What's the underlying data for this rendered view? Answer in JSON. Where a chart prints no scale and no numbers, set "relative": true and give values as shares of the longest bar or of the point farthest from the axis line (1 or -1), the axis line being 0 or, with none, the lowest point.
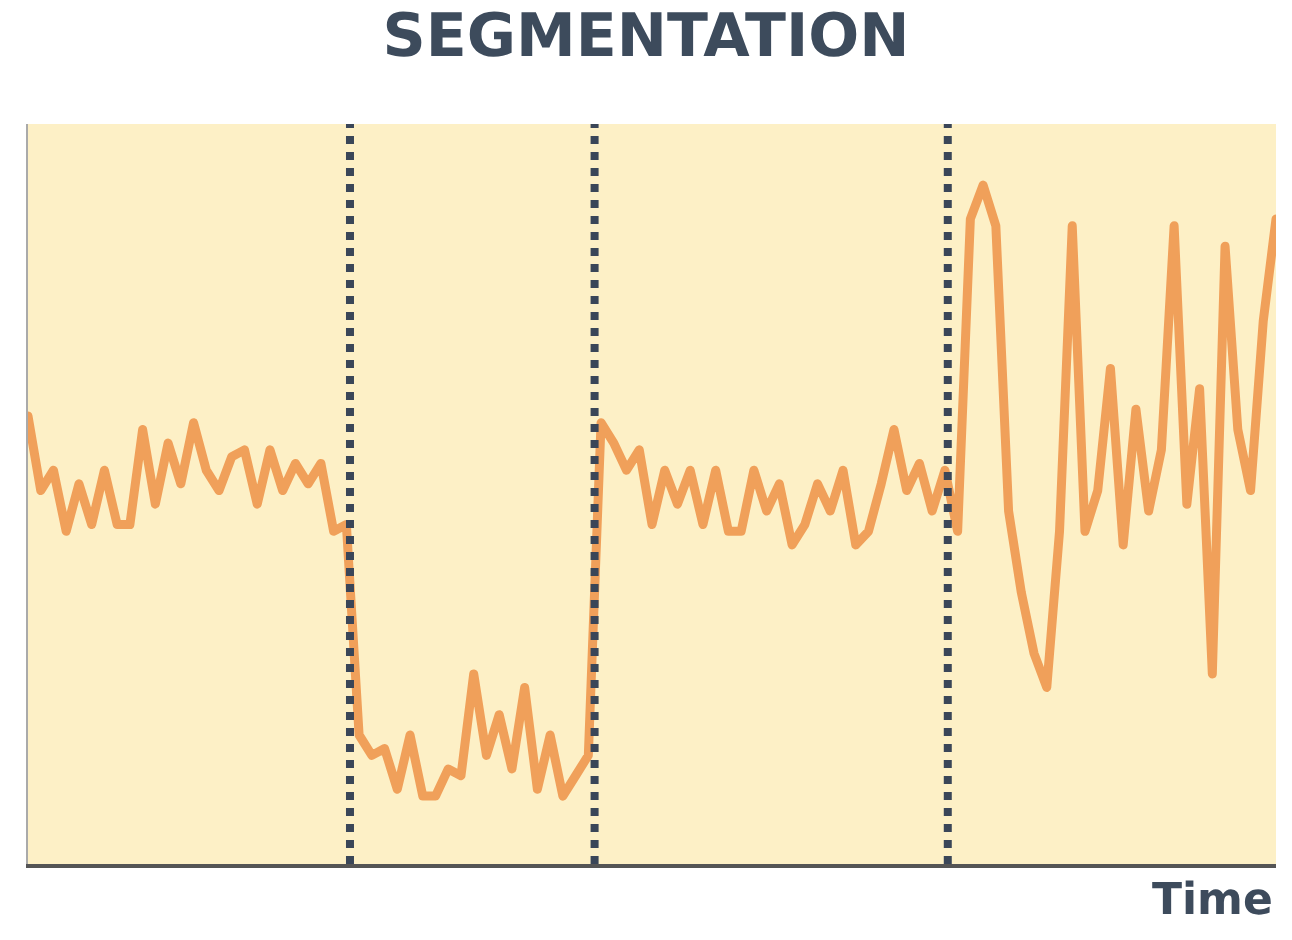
{
  "chart_data": {
    "type": "line",
    "title": "SEGMENTATION",
    "xlabel": "Time",
    "relative": true,
    "marker": "none",
    "line_style": "solid",
    "categories": [
      null,
      null,
      null,
      null,
      null,
      null,
      null,
      null,
      null,
      null,
      null,
      null,
      null,
      null,
      null,
      null,
      null,
      null,
      null,
      null,
      null,
      null,
      null,
      null,
      null,
      null,
      null,
      null,
      null,
      null,
      null,
      null,
      null,
      null,
      null,
      null,
      null,
      null,
      null,
      null,
      null,
      null,
      null,
      null,
      null,
      null,
      null,
      null,
      null,
      null,
      null,
      null,
      null,
      null,
      null,
      null,
      null,
      null,
      null,
      null,
      null,
      null,
      null,
      null,
      null,
      null,
      null,
      null,
      null,
      null,
      null,
      null,
      null,
      null,
      null,
      null,
      null,
      null,
      null,
      null,
      null,
      null,
      null,
      null,
      null,
      null,
      null,
      null,
      null,
      null,
      null,
      null,
      null,
      null,
      null,
      null,
      null,
      null,
      null
    ],
    "series": [
      {
        "color": "#f0a05a",
        "values": [
          0.66,
          0.55,
          0.58,
          0.49,
          0.56,
          0.5,
          0.58,
          0.5,
          0.5,
          0.64,
          0.53,
          0.62,
          0.56,
          0.65,
          0.58,
          0.55,
          0.6,
          0.61,
          0.53,
          0.61,
          0.55,
          0.59,
          0.56,
          0.59,
          0.49,
          0.5,
          0.19,
          0.16,
          0.17,
          0.11,
          0.19,
          0.1,
          0.1,
          0.14,
          0.13,
          0.28,
          0.16,
          0.22,
          0.14,
          0.26,
          0.11,
          0.19,
          0.1,
          0.13,
          0.16,
          0.65,
          0.62,
          0.58,
          0.61,
          0.5,
          0.58,
          0.53,
          0.58,
          0.5,
          0.58,
          0.49,
          0.49,
          0.58,
          0.52,
          0.56,
          0.47,
          0.5,
          0.56,
          0.52,
          0.58,
          0.47,
          0.49,
          0.56,
          0.64,
          0.55,
          0.59,
          0.52,
          0.58,
          0.49,
          0.95,
          1.0,
          0.94,
          0.52,
          0.4,
          0.31,
          0.26,
          0.49,
          0.94,
          0.49,
          0.55,
          0.73,
          0.47,
          0.67,
          0.52,
          0.61,
          0.94,
          0.53,
          0.7,
          0.28,
          0.91,
          0.64,
          0.55,
          0.8,
          0.95
        ]
      }
    ]
  }
}
